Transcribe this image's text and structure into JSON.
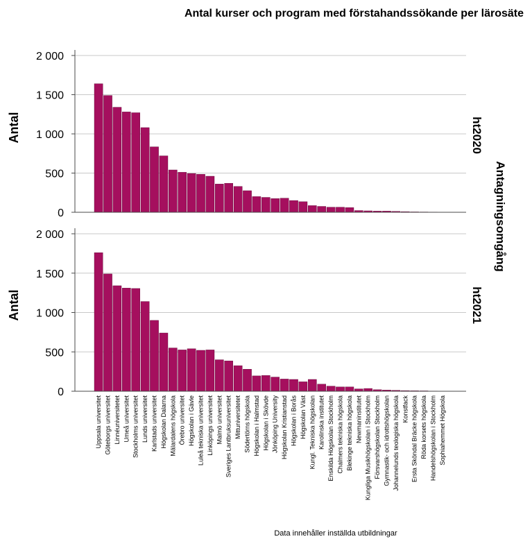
{
  "chart_data": {
    "type": "bar",
    "title": "Antal kurser och program med förstahandssökande per lärosäte",
    "ylabel": "Antal",
    "facet_label": "Antagningsomgång",
    "footnote": "Data innehåller inställda utbildningar",
    "ylim": [
      0,
      2000
    ],
    "yticks": [
      "0",
      "500",
      "1 000",
      "1 500",
      "2 000"
    ],
    "ytick_values": [
      0,
      500,
      1000,
      1500,
      2000
    ],
    "grid": true,
    "bar_color": "#a50f5e",
    "categories": [
      "Uppsala universitet",
      "Göteborgs universitet",
      "Linnéuniversitetet",
      "Umeå universitet",
      "Stockholms universitet",
      "Lunds universitet",
      "Karlstads universitet",
      "Högskolan Dalarna",
      "Mälardalens högskola",
      "Örebro universitet",
      "Högskolan i Gävle",
      "Luleå tekniska universitet",
      "Linköpings universitet",
      "Malmö universitet",
      "Sveriges Lantbruksuniversitet",
      "Mittuniversitetet",
      "Södertörns högskola",
      "Högskolan i Halmstad",
      "Högskolan i Skövde",
      "Jönköping University",
      "Högskolan Kristianstad",
      "Högskolan i Borås",
      "Högskolan Väst",
      "Kungl. Tekniska högskolan",
      "Karolinska institutet",
      "Enskilda Högskolan Stockholm",
      "Chalmers tekniska högskola",
      "Blekinge tekniska högskola",
      "Newmaninstitutet",
      "Kungliga Musikhögskolan i Stockholm",
      "Försvarshögskolan Stockholm",
      "Gymnastik- och idrottshögskolan",
      "Johannelunds teologiska högskola",
      "Konstfack",
      "Ersta Sköndal Bräcke högskola",
      "Röda korsets högskola",
      "Handelshögskolan i Stockholm",
      "Sophiahemmet Högskola"
    ],
    "panels": [
      {
        "name": "ht2020",
        "values": [
          1640,
          1490,
          1340,
          1280,
          1270,
          1080,
          835,
          720,
          540,
          510,
          495,
          485,
          460,
          360,
          370,
          330,
          275,
          200,
          190,
          175,
          180,
          150,
          135,
          85,
          75,
          65,
          65,
          60,
          22,
          18,
          15,
          15,
          12,
          8,
          5,
          4,
          3,
          2
        ]
      },
      {
        "name": "ht2021",
        "values": [
          1760,
          1490,
          1340,
          1310,
          1305,
          1140,
          900,
          740,
          550,
          525,
          540,
          520,
          525,
          400,
          385,
          325,
          280,
          195,
          200,
          180,
          155,
          150,
          120,
          150,
          90,
          65,
          55,
          55,
          30,
          35,
          20,
          15,
          12,
          8,
          6,
          5,
          3,
          2
        ]
      }
    ]
  }
}
